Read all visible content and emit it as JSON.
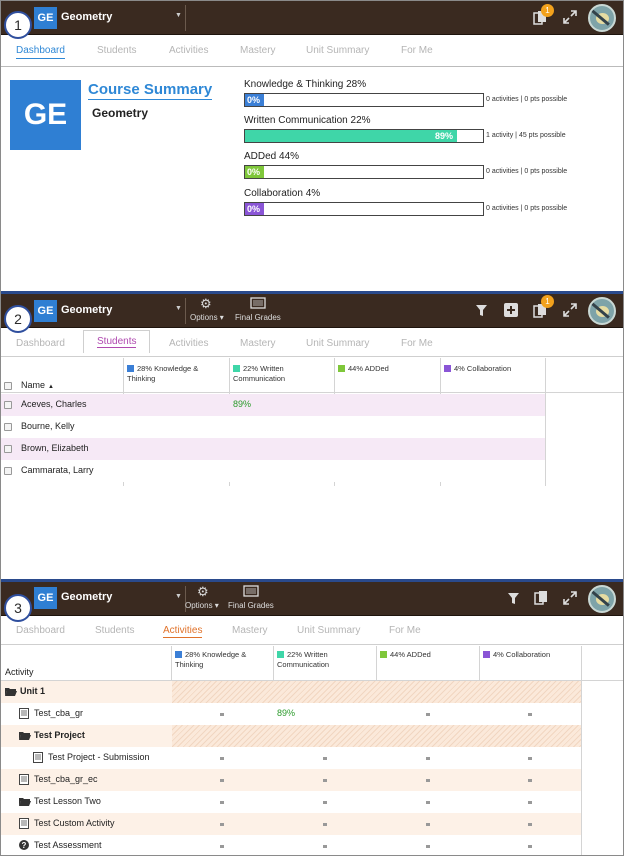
{
  "course": {
    "abbr": "GE",
    "name": "Geometry"
  },
  "steps": [
    "1",
    "2",
    "3"
  ],
  "notifications": {
    "count": "1"
  },
  "tabs": [
    "Dashboard",
    "Students",
    "Activities",
    "Mastery",
    "Unit Summary",
    "For Me"
  ],
  "toolbar": {
    "options_label": "Options",
    "final_grades_label": "Final Grades"
  },
  "summary": {
    "title": "Course Summary",
    "subtitle": "Geometry",
    "categories": [
      {
        "label": "Knowledge & Thinking 28%",
        "percent_label": "0%",
        "percent": 0,
        "info": "0 activities | 0 pts possible",
        "color": "#3b7fd6"
      },
      {
        "label": "Written Communication 22%",
        "percent_label": "89%",
        "percent": 89,
        "info": "1 activity | 45 pts possible",
        "color": "#3fd6a8"
      },
      {
        "label": "ADDed 44%",
        "percent_label": "0%",
        "percent": 0,
        "info": "0 activities | 0 pts possible",
        "color": "#7fc73a"
      },
      {
        "label": "Collaboration 4%",
        "percent_label": "0%",
        "percent": 0,
        "info": "0 activities | 0 pts possible",
        "color": "#8a55d6"
      }
    ]
  },
  "grade_columns": [
    {
      "label": "28% Knowledge & Thinking",
      "color": "#3b7fd6"
    },
    {
      "label": "22% Written Communication",
      "color": "#3fd6a8"
    },
    {
      "label": "44% ADDed",
      "color": "#7fc73a"
    },
    {
      "label": "4% Collaboration",
      "color": "#8a55d6"
    }
  ],
  "students": {
    "name_header": "Name",
    "sort_indicator": "▲",
    "rows": [
      {
        "name": "Aceves, Charles",
        "scores": [
          "",
          "89%",
          "",
          ""
        ]
      },
      {
        "name": "Bourne, Kelly",
        "scores": [
          "",
          "",
          "",
          ""
        ]
      },
      {
        "name": "Brown, Elizabeth",
        "scores": [
          "",
          "",
          "",
          ""
        ]
      },
      {
        "name": "Cammarata, Larry",
        "scores": [
          "",
          "",
          "",
          ""
        ]
      }
    ]
  },
  "activities": {
    "header": "Activity",
    "rows": [
      {
        "name": "Unit 1",
        "icon": "folder-open-icon",
        "bold": true,
        "indent": 0,
        "group": true,
        "scores": []
      },
      {
        "name": "Test_cba_gr",
        "icon": "document-icon",
        "bold": false,
        "indent": 1,
        "group": false,
        "scores": [
          "·",
          "89%",
          "·",
          "·"
        ]
      },
      {
        "name": "Test Project",
        "icon": "folder-open-icon",
        "bold": true,
        "indent": 1,
        "group": true,
        "scores": []
      },
      {
        "name": "Test Project - Submission",
        "icon": "document-icon",
        "bold": false,
        "indent": 2,
        "group": false,
        "scores": [
          "·",
          "·",
          "·",
          "·"
        ]
      },
      {
        "name": "Test_cba_gr_ec",
        "icon": "document-icon",
        "bold": false,
        "indent": 1,
        "group": false,
        "scores": [
          "·",
          "·",
          "·",
          "·"
        ]
      },
      {
        "name": "Test Lesson Two",
        "icon": "folder-open-icon",
        "bold": false,
        "indent": 1,
        "group": false,
        "scores": [
          "·",
          "·",
          "·",
          "·"
        ]
      },
      {
        "name": "Test Custom Activity",
        "icon": "document-icon",
        "bold": false,
        "indent": 1,
        "group": false,
        "scores": [
          "·",
          "·",
          "·",
          "·"
        ]
      },
      {
        "name": "Test Assessment",
        "icon": "question-icon",
        "bold": false,
        "indent": 1,
        "group": false,
        "scores": [
          "·",
          "·",
          "·",
          "·"
        ]
      }
    ]
  }
}
